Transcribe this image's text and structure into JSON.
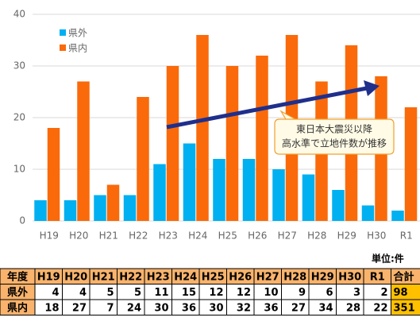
{
  "chart_data": {
    "type": "bar",
    "categories": [
      "H19",
      "H20",
      "H21",
      "H22",
      "H23",
      "H24",
      "H25",
      "H26",
      "H27",
      "H28",
      "H29",
      "H30",
      "R1"
    ],
    "series": [
      {
        "name": "県外",
        "color": "#00b0f0",
        "values": [
          4,
          4,
          5,
          5,
          11,
          15,
          12,
          12,
          10,
          9,
          6,
          3,
          2
        ]
      },
      {
        "name": "県内",
        "color": "#fa6a0a",
        "values": [
          18,
          27,
          7,
          24,
          30,
          36,
          30,
          32,
          36,
          27,
          34,
          28,
          22
        ]
      }
    ],
    "ylim": [
      0,
      40
    ],
    "yticks": [
      0,
      10,
      20,
      30,
      40
    ],
    "grid": true,
    "legend": "top-left",
    "annotation": [
      "東日本大震災以降",
      "高水準で立地件数が推移"
    ]
  },
  "table": {
    "unit": "単位:件",
    "header_label": "年度",
    "total_label": "合計",
    "totals": [
      98,
      351
    ]
  }
}
